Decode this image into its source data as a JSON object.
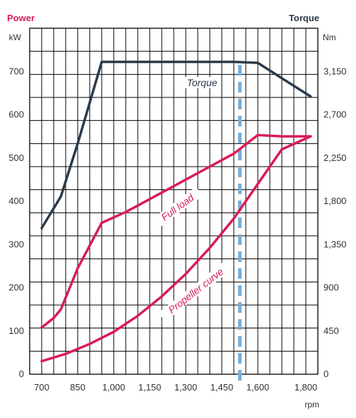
{
  "chart_data": {
    "type": "line",
    "left_title": "Power",
    "right_title": "Torque",
    "left_unit": "kW",
    "right_unit": "Nm",
    "xlabel": "rpm",
    "xlim": [
      650,
      1850
    ],
    "ylim": [
      0,
      800
    ],
    "y2lim": [
      0,
      3600
    ],
    "x_ticks": [
      {
        "value": 700,
        "label": "700"
      },
      {
        "value": 850,
        "label": "850"
      },
      {
        "value": 1000,
        "label": "1,000"
      },
      {
        "value": 1150,
        "label": "1,150"
      },
      {
        "value": 1300,
        "label": "1,300"
      },
      {
        "value": 1450,
        "label": "1,450"
      },
      {
        "value": 1600,
        "label": "1,600"
      },
      {
        "value": 1800,
        "label": "1,800"
      }
    ],
    "y_ticks": [
      {
        "value": 0,
        "label": "0"
      },
      {
        "value": 100,
        "label": "100"
      },
      {
        "value": 200,
        "label": "200"
      },
      {
        "value": 300,
        "label": "300"
      },
      {
        "value": 400,
        "label": "400"
      },
      {
        "value": 500,
        "label": "500"
      },
      {
        "value": 600,
        "label": "600"
      },
      {
        "value": 700,
        "label": "700"
      }
    ],
    "y2_ticks": [
      {
        "value": 0,
        "label": "0"
      },
      {
        "value": 450,
        "label": "450"
      },
      {
        "value": 900,
        "label": "900"
      },
      {
        "value": 1350,
        "label": "1,350"
      },
      {
        "value": 1800,
        "label": "1,800"
      },
      {
        "value": 2250,
        "label": "2,250"
      },
      {
        "value": 2700,
        "label": "2,700"
      },
      {
        "value": 3150,
        "label": "3,150"
      }
    ],
    "vertical_marker_rpm": 1525,
    "series": [
      {
        "name": "Torque",
        "axis": "right",
        "color": "#2b3a4a",
        "points": [
          [
            700,
            1520
          ],
          [
            780,
            1850
          ],
          [
            850,
            2400
          ],
          [
            950,
            3250
          ],
          [
            1000,
            3250
          ],
          [
            1500,
            3250
          ],
          [
            1600,
            3240
          ],
          [
            1700,
            3080
          ],
          [
            1820,
            2890
          ]
        ]
      },
      {
        "name": "Full load",
        "axis": "left",
        "color": "#d81b5a",
        "points": [
          [
            700,
            108
          ],
          [
            750,
            130
          ],
          [
            780,
            150
          ],
          [
            850,
            245
          ],
          [
            950,
            350
          ],
          [
            1050,
            375
          ],
          [
            1200,
            420
          ],
          [
            1350,
            465
          ],
          [
            1500,
            510
          ],
          [
            1600,
            553
          ],
          [
            1700,
            550
          ],
          [
            1820,
            550
          ]
        ]
      },
      {
        "name": "Propeller curve",
        "axis": "left",
        "color": "#d81b5a",
        "points": [
          [
            700,
            30
          ],
          [
            800,
            47
          ],
          [
            900,
            70
          ],
          [
            1000,
            98
          ],
          [
            1100,
            135
          ],
          [
            1200,
            180
          ],
          [
            1300,
            232
          ],
          [
            1400,
            292
          ],
          [
            1500,
            360
          ],
          [
            1600,
            440
          ],
          [
            1700,
            520
          ],
          [
            1820,
            550
          ]
        ]
      }
    ],
    "annotations": [
      {
        "text": "Torque",
        "series": "Torque"
      },
      {
        "text": "Full load",
        "series": "Full load"
      },
      {
        "text": "Propeller curve",
        "series": "Propeller curve"
      }
    ],
    "grid": true,
    "colors": {
      "power": "#d81b5a",
      "torque": "#2b3a4a",
      "marker": "#7aaed8"
    }
  }
}
